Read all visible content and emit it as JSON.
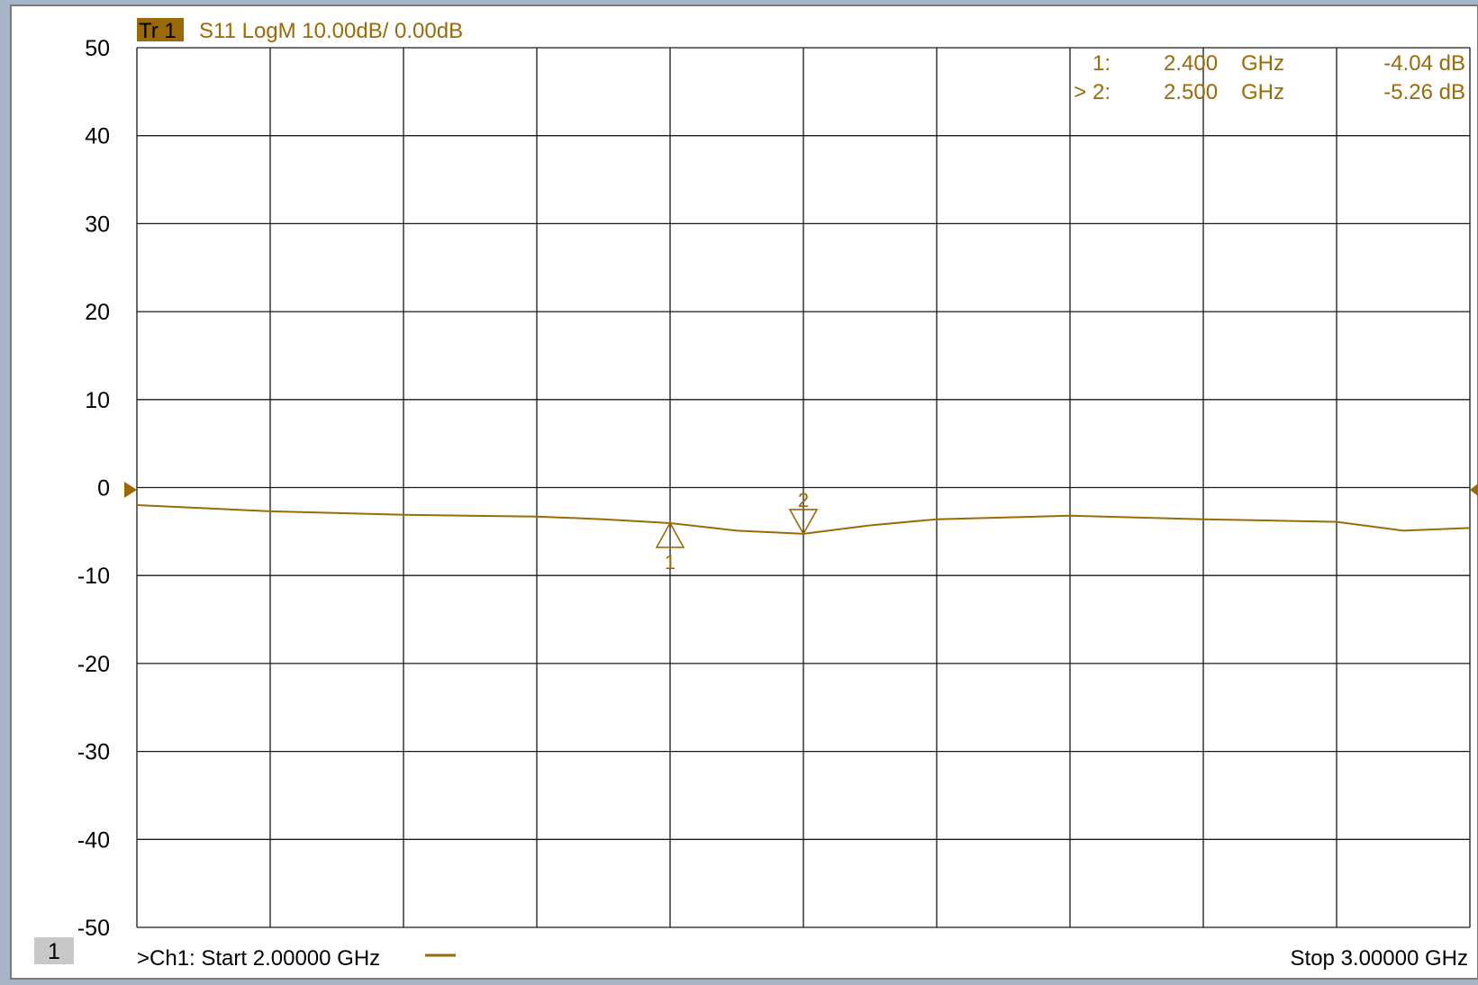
{
  "trace_header": {
    "trace_tag": "Tr 1",
    "trace_info": "S11 LogM 10.00dB/  0.00dB"
  },
  "marker_table": [
    {
      "id": "1:",
      "freq": "2.400",
      "unit": "GHz",
      "value": "-4.04 dB"
    },
    {
      "id": "> 2:",
      "freq": "2.500",
      "unit": "GHz",
      "value": "-5.26 dB"
    }
  ],
  "footer": {
    "channel_number": "1",
    "start_label": ">Ch1:  Start  2.00000 GHz",
    "stop_label": "Stop  3.00000 GHz"
  },
  "colors": {
    "trace": "#9a6a08",
    "tag_bg": "#9a6a08",
    "grid": "#1a1a1a",
    "background": "#ffffff"
  },
  "chart_data": {
    "type": "line",
    "title": "S11 LogM 10.00dB/  0.00dB",
    "xlabel": "",
    "ylabel": "",
    "xlim": [
      2.0,
      3.0
    ],
    "ylim": [
      -50,
      50
    ],
    "x_unit": "GHz",
    "y_unit": "dB",
    "reference_level": 0,
    "grid": true,
    "y_ticks": [
      "50",
      "40",
      "30",
      "20",
      "10",
      "0",
      "-10",
      "-20",
      "-30",
      "-40",
      "-50"
    ],
    "series": [
      {
        "name": "",
        "x": [
          2.0,
          2.1,
          2.2,
          2.3,
          2.35,
          2.4,
          2.45,
          2.5,
          2.55,
          2.6,
          2.7,
          2.8,
          2.9,
          2.95,
          3.0
        ],
        "y": [
          -2.0,
          -2.7,
          -3.1,
          -3.3,
          -3.6,
          -4.04,
          -4.9,
          -5.26,
          -4.3,
          -3.6,
          -3.2,
          -3.6,
          -3.9,
          -4.9,
          -4.6
        ]
      }
    ],
    "markers": [
      {
        "label": "1",
        "x": 2.4,
        "y": -4.04
      },
      {
        "label": "2",
        "x": 2.5,
        "y": -5.26
      }
    ]
  }
}
